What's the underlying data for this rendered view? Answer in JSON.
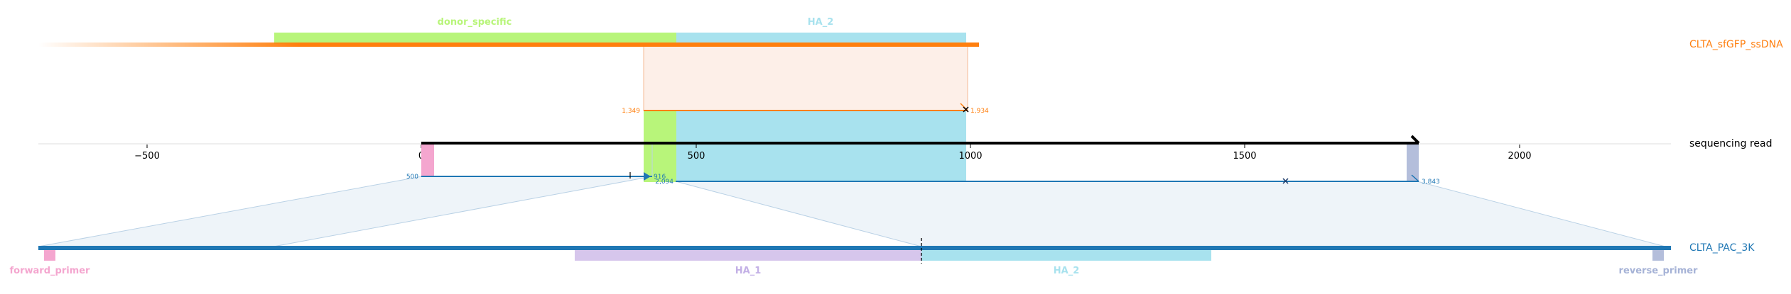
{
  "colors": {
    "donor": "#ff7f0e",
    "target": "#1f77b4",
    "read": "#000000",
    "donor_specific": "#b8f57a",
    "ha_2": "#a8e2ee",
    "ha_1": "#d6c6ec",
    "forward_primer": "#f4a6cf",
    "reverse_primer": "#b4bedb",
    "donor_fill": "#fde8dc",
    "target_fill": "#e6eef6"
  },
  "labels": {
    "donor_name": "CLTA_sfGFP_ssDNA",
    "read_name": "sequencing read",
    "target_name": "CLTA_PAC_3K"
  },
  "donor_features": [
    {
      "label": "donor_specific",
      "color": "#b8f57a"
    },
    {
      "label": "HA_2",
      "color": "#a8e2ee"
    }
  ],
  "target_features": [
    {
      "label": "forward_primer",
      "color": "#f4a6cf"
    },
    {
      "label": "HA_1",
      "color": "#d6c6ec"
    },
    {
      "label": "HA_2",
      "color": "#a8e2ee"
    },
    {
      "label": "reverse_primer",
      "color": "#b4bedb"
    }
  ],
  "axis": {
    "ticks": [
      "−500",
      "0",
      "500",
      "1000",
      "1500",
      "2000"
    ]
  },
  "alignments": {
    "donor": {
      "start_label": "1,349",
      "end_label": "1,934"
    },
    "target_left": {
      "start_label": "500",
      "end_label": "916"
    },
    "target_right": {
      "start_label": "2,094",
      "end_label": "3,843"
    }
  }
}
